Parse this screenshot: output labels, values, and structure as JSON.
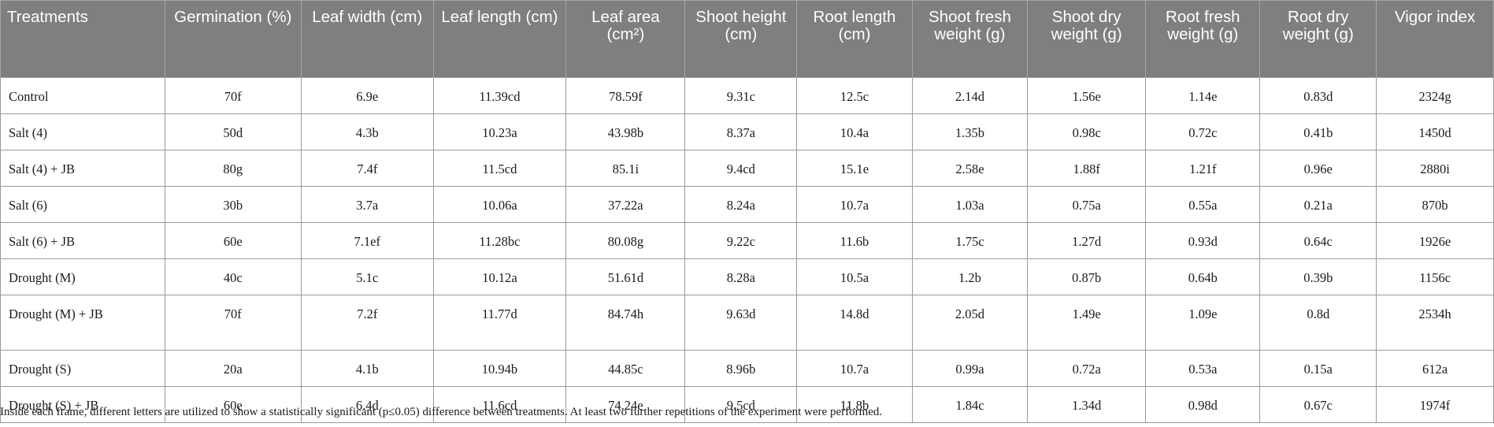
{
  "table": {
    "headers": [
      "Treatments",
      "Germination (%)",
      "Leaf width (cm)",
      "Leaf length (cm)",
      "Leaf area (cm²)",
      "Shoot height (cm)",
      "Root length (cm)",
      "Shoot fresh weight (g)",
      "Shoot dry weight (g)",
      "Root fresh weight (g)",
      "Root dry weight (g)",
      "Vigor index"
    ],
    "rows": [
      [
        "Control",
        "70f",
        "6.9e",
        "11.39cd",
        "78.59f",
        "9.31c",
        "12.5c",
        "2.14d",
        "1.56e",
        "1.14e",
        "0.83d",
        "2324g"
      ],
      [
        "Salt (4)",
        "50d",
        "4.3b",
        "10.23a",
        "43.98b",
        "8.37a",
        "10.4a",
        "1.35b",
        "0.98c",
        "0.72c",
        "0.41b",
        "1450d"
      ],
      [
        "Salt (4) + JB",
        "80g",
        "7.4f",
        "11.5cd",
        "85.1i",
        "9.4cd",
        "15.1e",
        "2.58e",
        "1.88f",
        "1.21f",
        "0.96e",
        "2880i"
      ],
      [
        "Salt (6)",
        "30b",
        "3.7a",
        "10.06a",
        "37.22a",
        "8.24a",
        "10.7a",
        "1.03a",
        "0.75a",
        "0.55a",
        "0.21a",
        "870b"
      ],
      [
        "Salt (6) + JB",
        "60e",
        "7.1ef",
        "11.28bc",
        "80.08g",
        "9.22c",
        "11.6b",
        "1.75c",
        "1.27d",
        "0.93d",
        "0.64c",
        "1926e"
      ],
      [
        "Drought (M)",
        "40c",
        "5.1c",
        "10.12a",
        "51.61d",
        "8.28a",
        "10.5a",
        "1.2b",
        "0.87b",
        "0.64b",
        "0.39b",
        "1156c"
      ],
      [
        "Drought (M) + JB",
        "70f",
        "7.2f",
        "11.77d",
        "84.74h",
        "9.63d",
        "14.8d",
        "2.05d",
        "1.49e",
        "1.09e",
        "0.8d",
        "2534h"
      ],
      [
        "Drought (S)",
        "20a",
        "4.1b",
        "10.94b",
        "44.85c",
        "8.96b",
        "10.7a",
        "0.99a",
        "0.72a",
        "0.53a",
        "0.15a",
        "612a"
      ],
      [
        "Drought (S) + JB",
        "60e",
        "6.4d",
        "11.6cd",
        "74.24e",
        "9.5cd",
        "11.8b",
        "1.84c",
        "1.34d",
        "0.98d",
        "0.67c",
        "1974f"
      ]
    ]
  },
  "footnote": "Inside each frame, different letters are utilized to show a statistically significant (p≤0.05) difference between treatments. At least two further repetitions of the experiment were performed.",
  "colors": {
    "header_bg": "#7f7f7f",
    "header_text": "#ffffff",
    "grid": "#9a9a9a"
  }
}
